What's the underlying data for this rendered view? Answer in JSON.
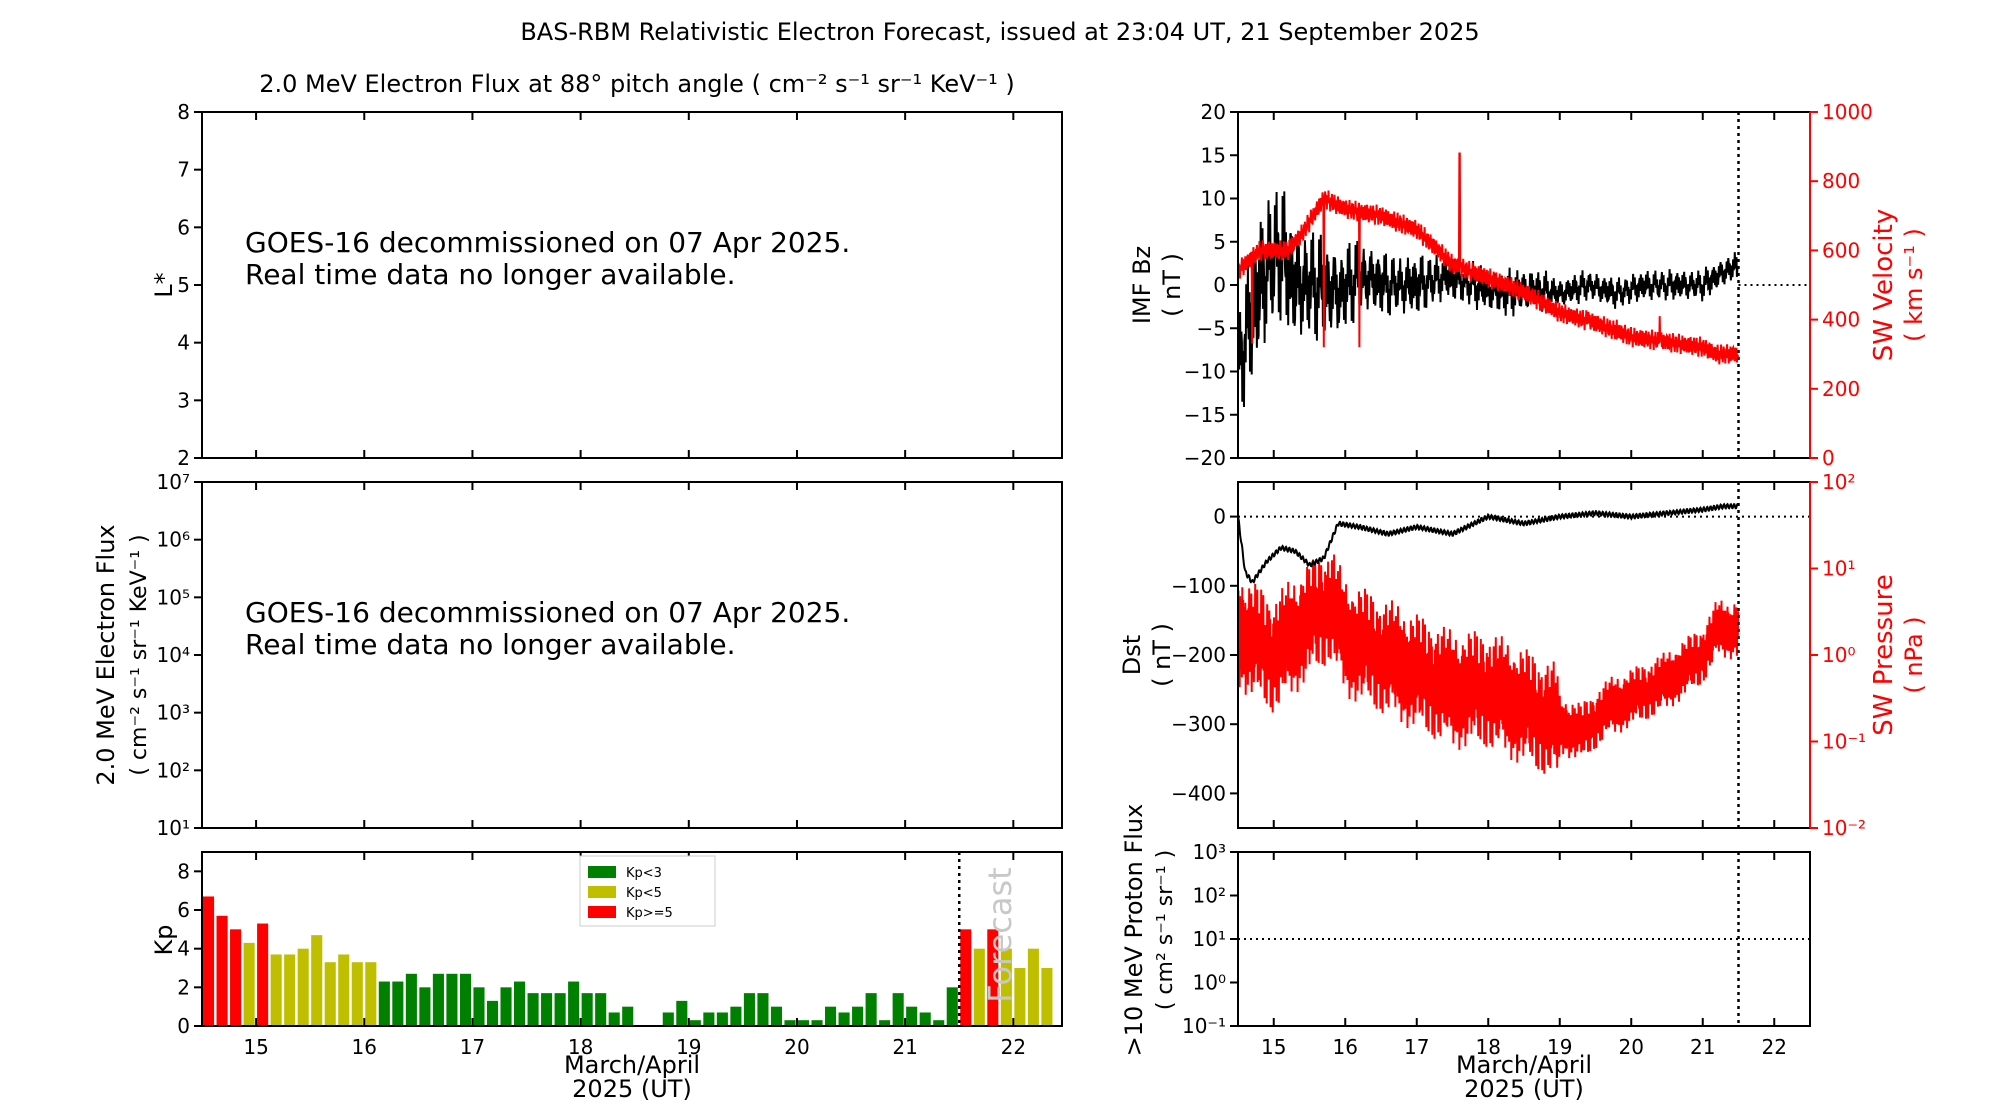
{
  "title": "BAS-RBM Relativistic Electron Forecast, issued at 23:04 UT, 21 September 2025",
  "colors": {
    "green": "#008000",
    "yellow": "#bfbf00",
    "red": "#ff0000",
    "black": "#000000"
  },
  "panels": {
    "lstar": {
      "title": "2.0 MeV Electron Flux at 88° pitch angle ( cm⁻² s⁻¹ sr⁻¹ KeV⁻¹ )",
      "ylabel": "L*",
      "yticks": [
        "2",
        "3",
        "4",
        "5",
        "6",
        "7",
        "8"
      ],
      "message_line1": "GOES-16 decommissioned on 07 Apr 2025.",
      "message_line2": "Real time data no longer available."
    },
    "flux": {
      "ylabel_line1": "2.0 MeV Electron Flux",
      "ylabel_line2": "( cm⁻² s⁻¹ sr⁻¹ KeV⁻¹ )",
      "yticks": [
        "10¹",
        "10²",
        "10³",
        "10⁴",
        "10⁵",
        "10⁶",
        "10⁷"
      ],
      "message_line1": "GOES-16 decommissioned on 07 Apr 2025.",
      "message_line2": "Real time data no longer available."
    },
    "kp": {
      "ylabel": "Kp",
      "yticks": [
        "0",
        "2",
        "4",
        "6",
        "8"
      ],
      "legend": [
        "Kp<3",
        "Kp<5",
        "Kp>=5"
      ],
      "forecast_label": "Forecast",
      "xticks": [
        "15",
        "16",
        "17",
        "18",
        "19",
        "20",
        "21",
        "22"
      ],
      "xlabel_line1": "March/April",
      "xlabel_line2": "2025 (UT)"
    },
    "imf": {
      "ylabel_line1": "IMF Bz",
      "ylabel_line2": "( nT )",
      "yticks": [
        "−20",
        "−15",
        "−10",
        "−5",
        "0",
        "5",
        "10",
        "15",
        "20"
      ],
      "y2label_line1": "SW Velocity",
      "y2label_line2": "( km s⁻¹ )",
      "y2ticks": [
        "0",
        "200",
        "400",
        "600",
        "800",
        "1000"
      ]
    },
    "dst": {
      "ylabel_line1": "Dst",
      "ylabel_line2": "( nT )",
      "yticks": [
        "−400",
        "−300",
        "−200",
        "−100",
        "0"
      ],
      "y2label_line1": "SW Pressure",
      "y2label_line2": "( nPa )",
      "y2ticks": [
        "10⁻²",
        "10⁻¹",
        "10⁰",
        "10¹",
        "10²"
      ]
    },
    "proton": {
      "ylabel_line1": ">10 MeV Proton Flux",
      "ylabel_line2": "( cm² s⁻¹ sr⁻¹ )",
      "yticks": [
        "10⁻¹",
        "10⁰",
        "10¹",
        "10²",
        "10³"
      ],
      "xticks": [
        "15",
        "16",
        "17",
        "18",
        "19",
        "20",
        "21",
        "22"
      ],
      "xlabel_line1": "March/April",
      "xlabel_line2": "2025 (UT)"
    }
  },
  "chart_data": [
    {
      "type": "bar",
      "title": "Kp",
      "xlim": [
        14.5,
        22.45
      ],
      "ylim": [
        0,
        9
      ],
      "now_day": 21.5,
      "kp": [
        6.7,
        5.7,
        5.0,
        4.3,
        5.3,
        3.7,
        3.7,
        4.0,
        4.7,
        3.3,
        3.7,
        3.3,
        3.3,
        2.3,
        2.3,
        2.7,
        2.0,
        2.7,
        2.7,
        2.7,
        2.0,
        1.3,
        2.0,
        2.3,
        1.7,
        1.7,
        1.7,
        2.3,
        1.7,
        1.7,
        0.7,
        1.0,
        0.0,
        0.0,
        0.7,
        1.3,
        0.3,
        0.7,
        0.7,
        1.0,
        1.7,
        1.7,
        1.0,
        0.3,
        0.3,
        0.3,
        1.0,
        0.7,
        1.0,
        1.7,
        0.3,
        1.7,
        1.0,
        0.7,
        0.3,
        2.0,
        5.0,
        4.0,
        5.0,
        4.0,
        3.0,
        4.0,
        3.0
      ]
    },
    {
      "type": "line",
      "title": "IMF Bz and SW Velocity",
      "xlim": [
        14.5,
        22.5
      ],
      "ylim": [
        -20,
        20
      ],
      "y2lim": [
        0,
        1000
      ],
      "bz_days": [
        14.5,
        14.7,
        14.9,
        15.1,
        15.3,
        15.6,
        15.9,
        16.2,
        16.6,
        17.0,
        17.4,
        17.8,
        18.2,
        18.6,
        19.0,
        19.4,
        19.8,
        20.2,
        20.6,
        21.0,
        21.4,
        21.5
      ],
      "bz_values": [
        -10,
        -3,
        2,
        4,
        0,
        0,
        -1,
        1,
        0,
        0,
        1,
        0,
        -1,
        -0.5,
        -1,
        0,
        -1,
        0,
        0,
        0,
        2,
        2
      ],
      "bz_amplitude": [
        8,
        9,
        10,
        9,
        8,
        7,
        6,
        5,
        4,
        4,
        3,
        3,
        3,
        3,
        2,
        2,
        2,
        2,
        2,
        2,
        2,
        2
      ],
      "v_days": [
        14.5,
        14.8,
        15.2,
        15.4,
        15.7,
        16.0,
        16.5,
        17.0,
        17.5,
        18.0,
        18.5,
        19.0,
        19.5,
        20.0,
        20.5,
        21.0,
        21.2,
        21.5
      ],
      "v_values": [
        540,
        600,
        600,
        650,
        750,
        720,
        700,
        660,
        560,
        520,
        480,
        420,
        390,
        350,
        335,
        320,
        300,
        300
      ],
      "v_spikes": [
        [
          14.7,
          330
        ],
        [
          15.7,
          320
        ],
        [
          16.2,
          320
        ],
        [
          17.6,
          880
        ],
        [
          19.4,
          420
        ],
        [
          19.8,
          400
        ],
        [
          20.4,
          410
        ]
      ]
    },
    {
      "type": "line",
      "title": "Dst and SW Pressure",
      "xlim": [
        14.5,
        22.5
      ],
      "ylim": [
        -450,
        50
      ],
      "y2lim_log10": [
        -2,
        2
      ],
      "dst_days": [
        14.5,
        14.6,
        14.7,
        14.9,
        15.1,
        15.3,
        15.5,
        15.7,
        15.9,
        16.2,
        16.6,
        17.0,
        17.5,
        18.0,
        18.5,
        19.0,
        19.5,
        20.0,
        20.5,
        21.0,
        21.3,
        21.5
      ],
      "dst_values": [
        0,
        -80,
        -95,
        -65,
        -45,
        -50,
        -70,
        -60,
        -10,
        -15,
        -25,
        -15,
        -25,
        0,
        -10,
        0,
        5,
        0,
        5,
        10,
        15,
        15
      ],
      "p_days": [
        14.5,
        15.0,
        15.5,
        15.8,
        16.0,
        16.5,
        17.0,
        17.5,
        18.0,
        18.5,
        19.0,
        19.3,
        19.7,
        20.0,
        20.5,
        21.0,
        21.2,
        21.5
      ],
      "p_log10": [
        0.3,
        0.0,
        0.4,
        0.6,
        0.2,
        0.0,
        -0.2,
        -0.4,
        -0.4,
        -0.6,
        -0.8,
        -0.9,
        -0.6,
        -0.5,
        -0.3,
        0.0,
        0.3,
        0.3
      ]
    },
    {
      "type": "line",
      "title": ">10 MeV Proton Flux",
      "xlim": [
        14.5,
        22.5
      ],
      "ylim_log10": [
        -1,
        3
      ],
      "threshold_log10": 1,
      "now_day": 21.5
    }
  ]
}
